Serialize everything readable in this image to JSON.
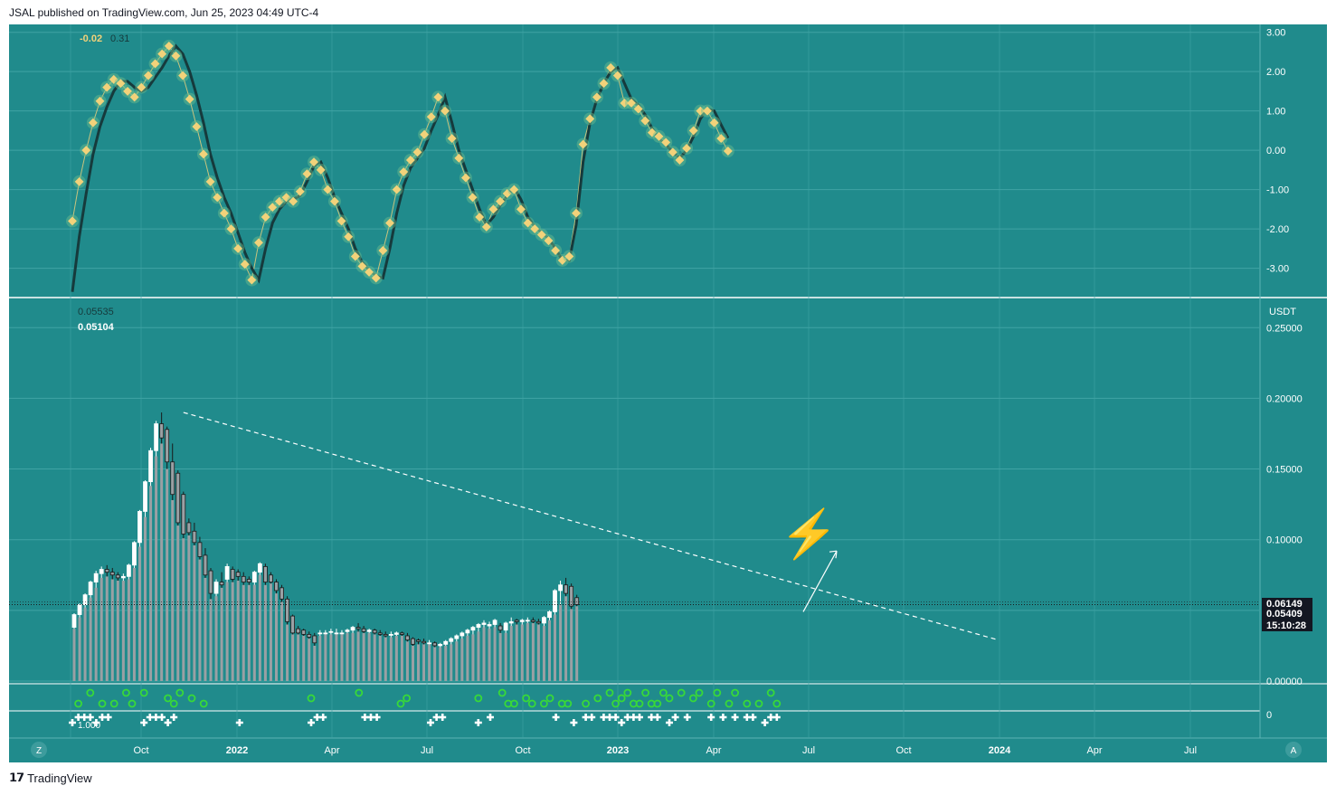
{
  "header": {
    "published": "JSAL published on TradingView.com, Jun 25, 2023 04:49 UTC-4"
  },
  "footer": {
    "brand": "TradingView",
    "left_button": "Z",
    "right_button": "A"
  },
  "colors": {
    "background": "#208b8c",
    "grid": "#3fa3a4",
    "oscillator_line": "#163a3c",
    "oscillator_dots": "#f2d27a",
    "candle_up": "#ffffff",
    "candle_down": "#9aa0a4",
    "volume_bar": "#9aa0a4",
    "signal_circle": "#38d938",
    "signal_cross": "#ffffff"
  },
  "chart_data": [
    {
      "type": "line",
      "pane": "oscillator",
      "legend_values": [
        "-0.02",
        "0.31"
      ],
      "ylim": [
        -3.7,
        3.2
      ],
      "yticks": [
        "3.00",
        "2.00",
        "1.00",
        "0.00",
        "-1.00",
        "-2.00",
        "-3.00"
      ],
      "series": [
        {
          "values": [
            -1.8,
            -0.8,
            0.0,
            0.7,
            1.25,
            1.6,
            1.8,
            1.7,
            1.5,
            1.35,
            1.6,
            1.9,
            2.2,
            2.45,
            2.65,
            2.4,
            1.9,
            1.3,
            0.6,
            -0.1,
            -0.8,
            -1.2,
            -1.6,
            -2.0,
            -2.5,
            -2.9,
            -3.3,
            -2.35,
            -1.7,
            -1.45,
            -1.3,
            -1.2,
            -1.3,
            -1.05,
            -0.6,
            -0.3,
            -0.5,
            -1.0,
            -1.3,
            -1.8,
            -2.2,
            -2.7,
            -2.95,
            -3.1,
            -3.25,
            -2.55,
            -1.85,
            -1.0,
            -0.55,
            -0.25,
            -0.05,
            0.4,
            0.85,
            1.35,
            1.0,
            0.3,
            -0.2,
            -0.7,
            -1.2,
            -1.7,
            -1.95,
            -1.5,
            -1.3,
            -1.1,
            -1.0,
            -1.5,
            -1.85,
            -2.0,
            -2.15,
            -2.3,
            -2.55,
            -2.8,
            -2.7,
            -1.6,
            0.15,
            0.8,
            1.35,
            1.7,
            2.1,
            1.9,
            1.2,
            1.2,
            1.05,
            0.75,
            0.45,
            0.35,
            0.2,
            -0.05,
            -0.25,
            0.05,
            0.5,
            1.0,
            1.0,
            0.7,
            0.3,
            -0.02
          ]
        },
        {
          "values": [
            -3.6,
            -2.2,
            -1.1,
            -0.1,
            0.6,
            1.1,
            1.5,
            1.75,
            1.75,
            1.6,
            1.5,
            1.6,
            1.85,
            2.1,
            2.4,
            2.65,
            2.45,
            2.0,
            1.4,
            0.7,
            -0.1,
            -0.7,
            -1.2,
            -1.6,
            -2.1,
            -2.6,
            -3.0,
            -3.3,
            -2.5,
            -1.85,
            -1.5,
            -1.3,
            -1.25,
            -1.15,
            -0.8,
            -0.4,
            -0.3,
            -0.7,
            -1.2,
            -1.6,
            -2.0,
            -2.5,
            -2.85,
            -3.05,
            -3.2,
            -3.25,
            -2.5,
            -1.6,
            -0.9,
            -0.45,
            -0.2,
            0.05,
            0.5,
            0.9,
            1.35,
            0.7,
            0.0,
            -0.5,
            -1.0,
            -1.5,
            -1.9,
            -1.7,
            -1.4,
            -1.15,
            -0.95,
            -1.25,
            -1.7,
            -1.95,
            -2.1,
            -2.25,
            -2.5,
            -2.8,
            -2.8,
            -1.9,
            -0.3,
            0.7,
            1.3,
            1.7,
            2.0,
            2.1,
            1.7,
            1.3,
            1.15,
            0.9,
            0.55,
            0.3,
            0.15,
            -0.05,
            -0.2,
            0.0,
            0.35,
            0.8,
            1.05,
            1.0,
            0.65,
            0.31
          ]
        }
      ]
    },
    {
      "type": "candlestick",
      "pane": "price",
      "unit_label": "USDT",
      "legend_values": [
        "0.05535",
        "0.05104"
      ],
      "ylim": [
        0.0,
        0.27
      ],
      "yticks": [
        "0.25000",
        "0.20000",
        "0.15000",
        "0.10000",
        "0.05000",
        "0.00000"
      ],
      "x_labels": [
        "Oct",
        "2022",
        "Apr",
        "Jul",
        "Oct",
        "2023",
        "Apr",
        "Jul",
        "Oct",
        "2024",
        "Apr",
        "Jul"
      ],
      "price_labels": [
        "0.06149",
        "0.05409",
        "15:10:28"
      ],
      "ohlc": [
        [
          0.038,
          0.048,
          0.037,
          0.047
        ],
        [
          0.047,
          0.055,
          0.045,
          0.054
        ],
        [
          0.054,
          0.062,
          0.052,
          0.061
        ],
        [
          0.061,
          0.071,
          0.059,
          0.07
        ],
        [
          0.07,
          0.078,
          0.066,
          0.076
        ],
        [
          0.076,
          0.081,
          0.073,
          0.079
        ],
        [
          0.079,
          0.082,
          0.074,
          0.077
        ],
        [
          0.077,
          0.08,
          0.072,
          0.075
        ],
        [
          0.075,
          0.077,
          0.071,
          0.073
        ],
        [
          0.073,
          0.076,
          0.071,
          0.074
        ],
        [
          0.074,
          0.083,
          0.072,
          0.082
        ],
        [
          0.082,
          0.099,
          0.08,
          0.098
        ],
        [
          0.098,
          0.121,
          0.095,
          0.12
        ],
        [
          0.12,
          0.142,
          0.116,
          0.141
        ],
        [
          0.141,
          0.165,
          0.138,
          0.163
        ],
        [
          0.163,
          0.184,
          0.159,
          0.182
        ],
        [
          0.182,
          0.19,
          0.168,
          0.172
        ],
        [
          0.178,
          0.18,
          0.15,
          0.155
        ],
        [
          0.155,
          0.168,
          0.128,
          0.132
        ],
        [
          0.147,
          0.149,
          0.11,
          0.112
        ],
        [
          0.132,
          0.134,
          0.101,
          0.104
        ],
        [
          0.112,
          0.115,
          0.103,
          0.105
        ],
        [
          0.106,
          0.112,
          0.096,
          0.098
        ],
        [
          0.098,
          0.102,
          0.086,
          0.088
        ],
        [
          0.089,
          0.094,
          0.073,
          0.075
        ],
        [
          0.078,
          0.08,
          0.058,
          0.062
        ],
        [
          0.062,
          0.072,
          0.06,
          0.07
        ],
        [
          0.07,
          0.077,
          0.066,
          0.068
        ],
        [
          0.072,
          0.083,
          0.07,
          0.081
        ],
        [
          0.079,
          0.081,
          0.07,
          0.072
        ],
        [
          0.077,
          0.079,
          0.071,
          0.074
        ],
        [
          0.074,
          0.077,
          0.068,
          0.07
        ],
        [
          0.072,
          0.074,
          0.068,
          0.07
        ],
        [
          0.07,
          0.078,
          0.068,
          0.077
        ],
        [
          0.077,
          0.084,
          0.075,
          0.083
        ],
        [
          0.081,
          0.083,
          0.068,
          0.07
        ],
        [
          0.075,
          0.077,
          0.069,
          0.07
        ],
        [
          0.07,
          0.072,
          0.062,
          0.064
        ],
        [
          0.066,
          0.068,
          0.056,
          0.058
        ],
        [
          0.058,
          0.06,
          0.04,
          0.042
        ],
        [
          0.046,
          0.047,
          0.033,
          0.034
        ],
        [
          0.037,
          0.039,
          0.033,
          0.034
        ],
        [
          0.036,
          0.037,
          0.032,
          0.033
        ],
        [
          0.033,
          0.035,
          0.03,
          0.031
        ],
        [
          0.032,
          0.034,
          0.025,
          0.027
        ],
        [
          0.034,
          0.036,
          0.032,
          0.034
        ],
        [
          0.034,
          0.036,
          0.033,
          0.034
        ],
        [
          0.035,
          0.037,
          0.033,
          0.035
        ],
        [
          0.034,
          0.037,
          0.033,
          0.034
        ],
        [
          0.034,
          0.036,
          0.033,
          0.034
        ],
        [
          0.035,
          0.037,
          0.034,
          0.036
        ],
        [
          0.036,
          0.039,
          0.034,
          0.038
        ],
        [
          0.038,
          0.041,
          0.035,
          0.037
        ],
        [
          0.037,
          0.039,
          0.034,
          0.035
        ],
        [
          0.035,
          0.037,
          0.034,
          0.036
        ],
        [
          0.036,
          0.037,
          0.033,
          0.034
        ],
        [
          0.034,
          0.036,
          0.032,
          0.033
        ],
        [
          0.033,
          0.035,
          0.031,
          0.032
        ],
        [
          0.033,
          0.035,
          0.031,
          0.033
        ],
        [
          0.033,
          0.035,
          0.032,
          0.034
        ],
        [
          0.034,
          0.035,
          0.032,
          0.033
        ],
        [
          0.032,
          0.034,
          0.028,
          0.029
        ],
        [
          0.03,
          0.031,
          0.025,
          0.026
        ],
        [
          0.029,
          0.03,
          0.026,
          0.028
        ],
        [
          0.028,
          0.03,
          0.026,
          0.027
        ],
        [
          0.027,
          0.029,
          0.026,
          0.027
        ],
        [
          0.027,
          0.028,
          0.024,
          0.025
        ],
        [
          0.025,
          0.027,
          0.024,
          0.026
        ],
        [
          0.026,
          0.029,
          0.025,
          0.028
        ],
        [
          0.028,
          0.031,
          0.026,
          0.03
        ],
        [
          0.03,
          0.033,
          0.028,
          0.032
        ],
        [
          0.032,
          0.035,
          0.03,
          0.034
        ],
        [
          0.034,
          0.037,
          0.032,
          0.036
        ],
        [
          0.036,
          0.039,
          0.033,
          0.038
        ],
        [
          0.038,
          0.041,
          0.035,
          0.04
        ],
        [
          0.04,
          0.043,
          0.038,
          0.041
        ],
        [
          0.039,
          0.042,
          0.037,
          0.04
        ],
        [
          0.04,
          0.044,
          0.038,
          0.043
        ],
        [
          0.039,
          0.041,
          0.034,
          0.036
        ],
        [
          0.036,
          0.042,
          0.034,
          0.041
        ],
        [
          0.041,
          0.045,
          0.039,
          0.042
        ],
        [
          0.043,
          0.044,
          0.04,
          0.042
        ],
        [
          0.042,
          0.044,
          0.04,
          0.043
        ],
        [
          0.043,
          0.045,
          0.041,
          0.043
        ],
        [
          0.043,
          0.045,
          0.041,
          0.042
        ],
        [
          0.042,
          0.044,
          0.04,
          0.041
        ],
        [
          0.041,
          0.046,
          0.039,
          0.045
        ],
        [
          0.045,
          0.05,
          0.043,
          0.049
        ],
        [
          0.049,
          0.065,
          0.047,
          0.064
        ],
        [
          0.064,
          0.071,
          0.054,
          0.068
        ],
        [
          0.068,
          0.073,
          0.06,
          0.062
        ],
        [
          0.067,
          0.069,
          0.051,
          0.053
        ],
        [
          0.059,
          0.061,
          0.053,
          0.0541
        ]
      ],
      "volume_note": "bars rising from 0.00000 baseline"
    }
  ],
  "signals": {
    "circles": [
      1,
      3,
      5,
      7,
      9,
      10,
      12,
      16,
      17,
      18,
      20,
      22,
      40,
      48,
      55,
      56,
      68,
      72,
      73,
      74,
      76,
      77,
      79,
      80,
      82,
      83,
      86,
      88,
      90,
      91,
      92,
      93,
      94,
      95,
      96,
      97,
      98,
      99,
      100,
      102,
      104,
      105,
      107,
      108,
      110,
      111,
      113,
      115,
      117,
      118
    ],
    "crosses": [
      0,
      1,
      2,
      3,
      4,
      5,
      6,
      12,
      13,
      14,
      15,
      16,
      17,
      28,
      40,
      41,
      42,
      49,
      50,
      51,
      60,
      61,
      62,
      68,
      70,
      81,
      84,
      86,
      87,
      89,
      90,
      91,
      92,
      93,
      94,
      95,
      97,
      98,
      100,
      101,
      103,
      107,
      109,
      111,
      113,
      114,
      116,
      117,
      118
    ]
  },
  "annotations": {
    "emoji": "⚡",
    "signal_label": "1.000"
  }
}
